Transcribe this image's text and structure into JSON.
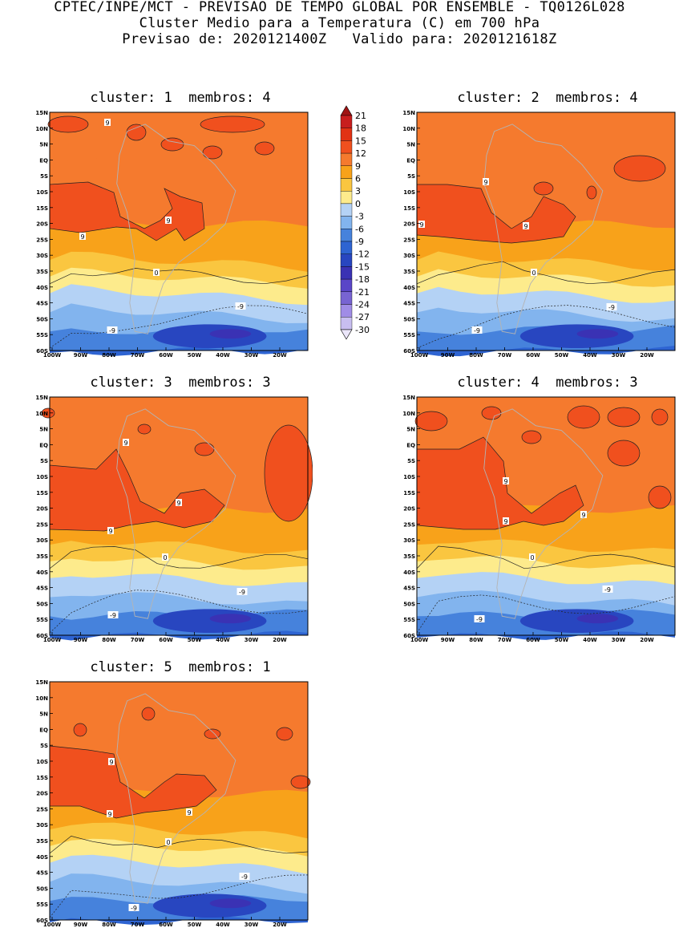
{
  "header": {
    "line1": "CPTEC/INPE/MCT - PREVISAO DE TEMPO GLOBAL POR ENSEMBLE - TQ0126L028",
    "line2": "Cluster Medio para a Temperatura (C) em 700 hPa",
    "line3": "Previsao de: 2020121400Z   Valido para: 2020121618Z"
  },
  "panels": [
    {
      "title": "cluster: 1  membros: 4"
    },
    {
      "title": "cluster: 2  membros: 4"
    },
    {
      "title": "cluster: 3  membros: 3"
    },
    {
      "title": "cluster: 4  membros: 3"
    },
    {
      "title": "cluster: 5  membros: 1"
    }
  ],
  "axes": {
    "lat_labels": [
      "15N",
      "10N",
      "5N",
      "EQ",
      "5S",
      "10S",
      "15S",
      "20S",
      "25S",
      "30S",
      "35S",
      "40S",
      "45S",
      "50S",
      "55S",
      "60S"
    ],
    "lon_labels": [
      "100W",
      "90W",
      "80W",
      "70W",
      "60W",
      "50W",
      "40W",
      "30W",
      "20W"
    ]
  },
  "colorbar": {
    "labels": [
      "21",
      "18",
      "15",
      "12",
      "9",
      "6",
      "3",
      "0",
      "-3",
      "-6",
      "-9",
      "-12",
      "-15",
      "-18",
      "-21",
      "-24",
      "-27",
      "-30"
    ],
    "colors": [
      "#a01414",
      "#c81e1e",
      "#e13214",
      "#f0501e",
      "#f57a2e",
      "#f8a21a",
      "#fac640",
      "#fdeb8c",
      "#b4d2f5",
      "#82b4ee",
      "#4682dc",
      "#2e64d2",
      "#2846c0",
      "#3a32b4",
      "#5a46c8",
      "#7864d2",
      "#a08ce6",
      "#c8bef0",
      "#ebe6fa"
    ]
  },
  "contour_labels": {
    "warm": "9",
    "zero": "0",
    "cold": "-9"
  }
}
